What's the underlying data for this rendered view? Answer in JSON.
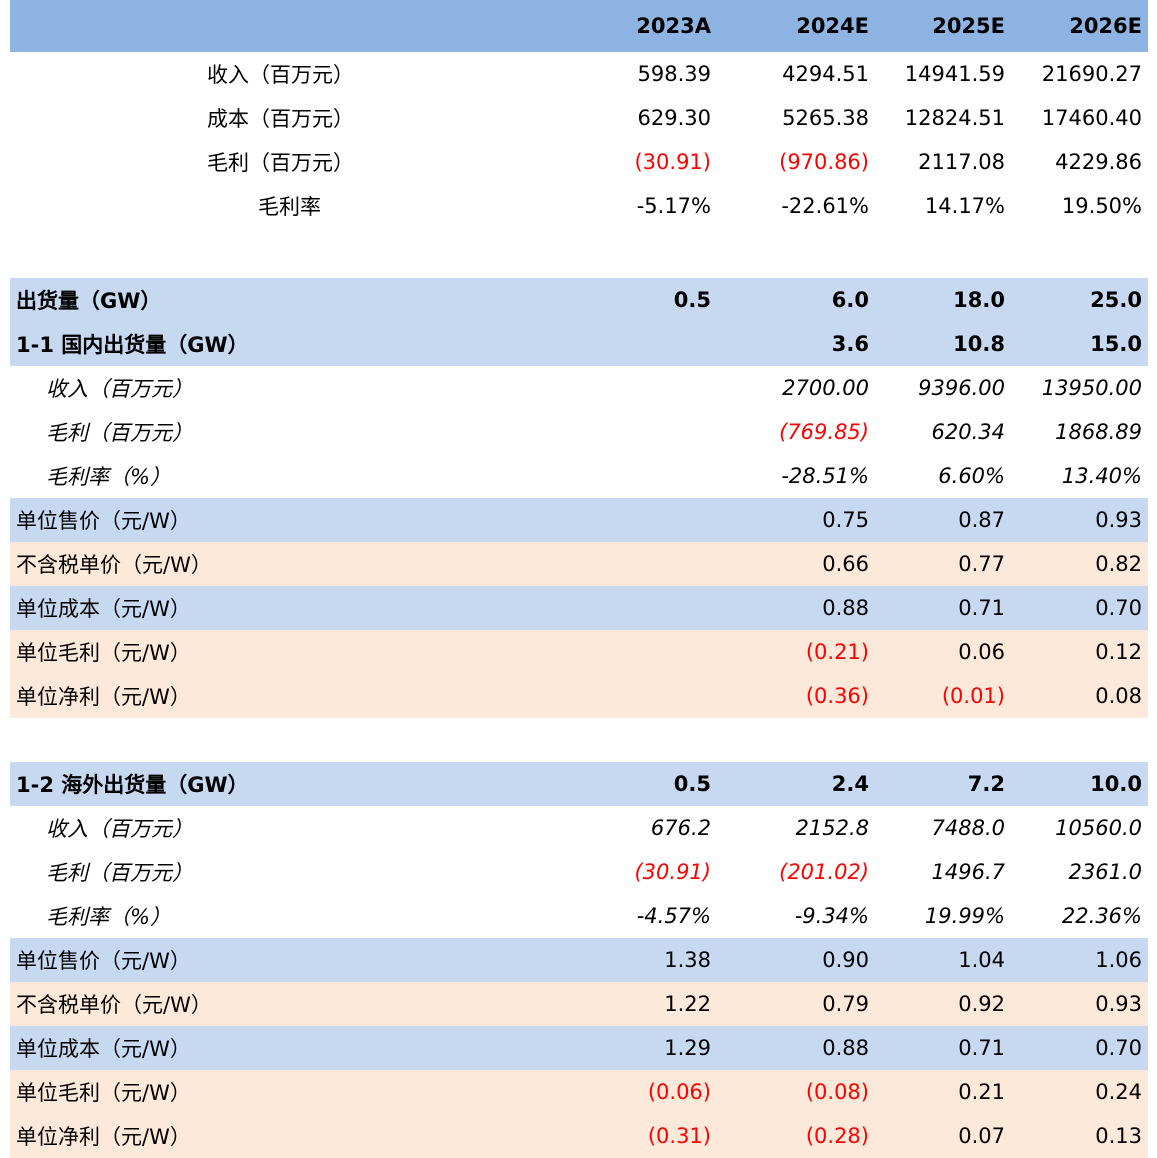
{
  "header": {
    "years": [
      "2023A",
      "2024E",
      "2025E",
      "2026E"
    ]
  },
  "summary": [
    {
      "label": "收入（百万元）",
      "values": [
        "598.39",
        "4294.51",
        "14941.59",
        "21690.27"
      ],
      "neg": [
        false,
        false,
        false,
        false
      ]
    },
    {
      "label": "成本（百万元）",
      "values": [
        "629.30",
        "5265.38",
        "12824.51",
        "17460.40"
      ],
      "neg": [
        false,
        false,
        false,
        false
      ]
    },
    {
      "label": "毛利（百万元）",
      "values": [
        "(30.91)",
        "(970.86)",
        "2117.08",
        "4229.86"
      ],
      "neg": [
        true,
        true,
        false,
        false
      ]
    },
    {
      "label": "毛利率",
      "values": [
        "-5.17%",
        "-22.61%",
        "14.17%",
        "19.50%"
      ],
      "neg": [
        false,
        false,
        false,
        false
      ]
    }
  ],
  "shipment_total": {
    "label": "出货量（GW）",
    "values": [
      "0.5",
      "6.0",
      "18.0",
      "25.0"
    ]
  },
  "domestic": {
    "title": {
      "label": "1-1 国内出货量（GW）",
      "values": [
        "",
        "3.6",
        "10.8",
        "15.0"
      ]
    },
    "detail": [
      {
        "label": "收入（百万元）",
        "values": [
          "",
          "2700.00",
          "9396.00",
          "13950.00"
        ],
        "neg": [
          false,
          false,
          false,
          false
        ]
      },
      {
        "label": "毛利（百万元）",
        "values": [
          "",
          "(769.85)",
          "620.34",
          "1868.89"
        ],
        "neg": [
          false,
          true,
          false,
          false
        ]
      },
      {
        "label": "毛利率（%）",
        "values": [
          "",
          "-28.51%",
          "6.60%",
          "13.40%"
        ],
        "neg": [
          false,
          false,
          false,
          false
        ]
      }
    ],
    "unit": [
      {
        "label": "单位售价（元/W）",
        "values": [
          "",
          "0.75",
          "0.87",
          "0.93"
        ],
        "neg": [
          false,
          false,
          false,
          false
        ],
        "bg": "blue"
      },
      {
        "label": "不含税单价（元/W）",
        "values": [
          "",
          "0.66",
          "0.77",
          "0.82"
        ],
        "neg": [
          false,
          false,
          false,
          false
        ],
        "bg": "peach"
      },
      {
        "label": "单位成本（元/W）",
        "values": [
          "",
          "0.88",
          "0.71",
          "0.70"
        ],
        "neg": [
          false,
          false,
          false,
          false
        ],
        "bg": "blue"
      },
      {
        "label": "单位毛利（元/W）",
        "values": [
          "",
          "(0.21)",
          "0.06",
          "0.12"
        ],
        "neg": [
          false,
          true,
          false,
          false
        ],
        "bg": "peach"
      },
      {
        "label": "单位净利（元/W）",
        "values": [
          "",
          "(0.36)",
          "(0.01)",
          "0.08"
        ],
        "neg": [
          false,
          true,
          true,
          false
        ],
        "bg": "peach"
      }
    ]
  },
  "overseas": {
    "title": {
      "label": "1-2 海外出货量（GW）",
      "values": [
        "0.5",
        "2.4",
        "7.2",
        "10.0"
      ]
    },
    "detail": [
      {
        "label": "收入（百万元）",
        "values": [
          "676.2",
          "2152.8",
          "7488.0",
          "10560.0"
        ],
        "neg": [
          false,
          false,
          false,
          false
        ]
      },
      {
        "label": "毛利（百万元）",
        "values": [
          "(30.91)",
          "(201.02)",
          "1496.7",
          "2361.0"
        ],
        "neg": [
          true,
          true,
          false,
          false
        ]
      },
      {
        "label": "毛利率（%）",
        "values": [
          "-4.57%",
          "-9.34%",
          "19.99%",
          "22.36%"
        ],
        "neg": [
          false,
          false,
          false,
          false
        ]
      }
    ],
    "unit": [
      {
        "label": "单位售价（元/W）",
        "values": [
          "1.38",
          "0.90",
          "1.04",
          "1.06"
        ],
        "neg": [
          false,
          false,
          false,
          false
        ],
        "bg": "blue"
      },
      {
        "label": "不含税单价（元/W）",
        "values": [
          "1.22",
          "0.79",
          "0.92",
          "0.93"
        ],
        "neg": [
          false,
          false,
          false,
          false
        ],
        "bg": "peach"
      },
      {
        "label": "单位成本（元/W）",
        "values": [
          "1.29",
          "0.88",
          "0.71",
          "0.70"
        ],
        "neg": [
          false,
          false,
          false,
          false
        ],
        "bg": "blue"
      },
      {
        "label": "单位毛利（元/W）",
        "values": [
          "(0.06)",
          "(0.08)",
          "0.21",
          "0.24"
        ],
        "neg": [
          true,
          true,
          false,
          false
        ],
        "bg": "peach"
      },
      {
        "label": "单位净利（元/W）",
        "values": [
          "(0.31)",
          "(0.28)",
          "0.07",
          "0.13"
        ],
        "neg": [
          true,
          true,
          false,
          false
        ],
        "bg": "peach"
      }
    ]
  },
  "colors": {
    "header": "#8eb4e3",
    "blue": "#c6d9f1",
    "peach": "#fde9d9",
    "negative": "#ff0000"
  }
}
